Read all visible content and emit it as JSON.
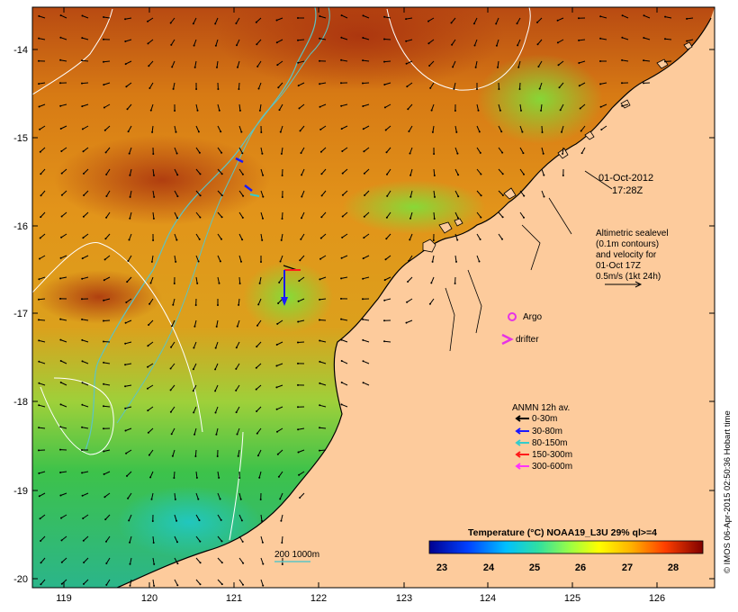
{
  "map": {
    "x_axis_ticks": [
      "119",
      "120",
      "121",
      "122",
      "123",
      "124",
      "125",
      "126"
    ],
    "y_axis_ticks": [
      "-14",
      "-15",
      "-16",
      "-17",
      "-18",
      "-19",
      "-20"
    ],
    "date_label": "01-Oct-2012",
    "time_label": "17:28Z",
    "altimetry_lines": [
      "Altimetric sealevel",
      "(0.1m contours)",
      "and velocity for",
      "01-Oct 17Z",
      "0.5m/s (1kt 24h)"
    ],
    "argo_label": "Argo",
    "drifter_label": "drifter",
    "anmn_title": "ANMN 12h av.",
    "anmn_legend": [
      {
        "label": "0-30m",
        "color": "#000000"
      },
      {
        "label": "30-80m",
        "color": "#1a1aff"
      },
      {
        "label": "80-150m",
        "color": "#33cccc"
      },
      {
        "label": "150-300m",
        "color": "#ff1a1a"
      },
      {
        "label": "300-600m",
        "color": "#ff33ff"
      }
    ],
    "isobath_label": "200  1000m",
    "colorbar_title": "Temperature (°C) NOAA19_L3U 29% ql>=4",
    "colorbar_ticks": [
      "23",
      "24",
      "25",
      "26",
      "27",
      "28"
    ],
    "credit": "© IMOS 06-Apr-2015 02:50:36 Hobart time",
    "colors": {
      "land": "#fdcb9c",
      "isobath": "#5cc4c4",
      "contour": "#ffffff",
      "argo": "#e633e6",
      "drifter": "#e633e6"
    }
  }
}
